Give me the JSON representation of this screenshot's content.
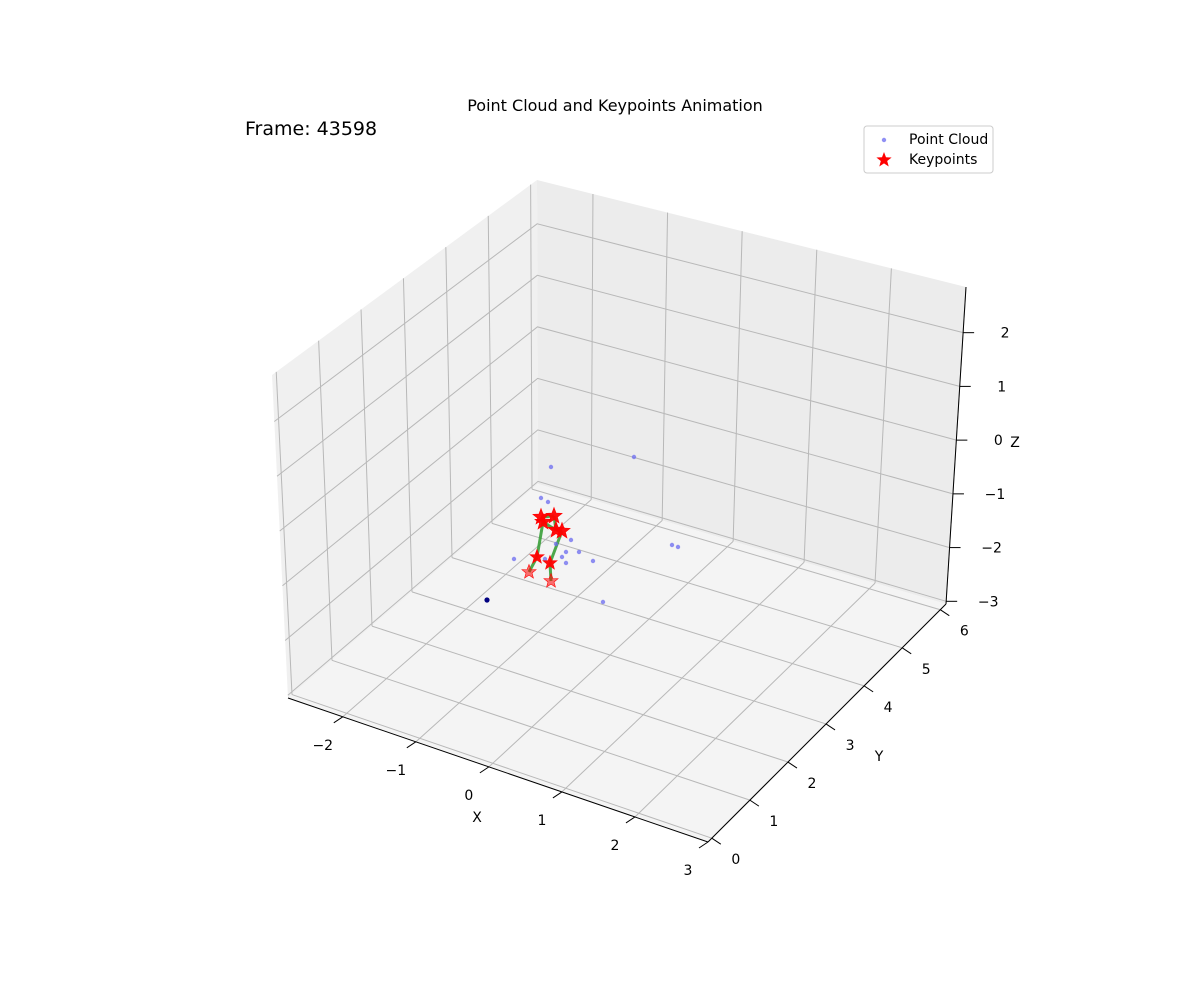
{
  "chart_data": {
    "type": "scatter",
    "title": "Point Cloud and Keypoints Animation",
    "frame_label": "Frame: 43598",
    "xlabel": "X",
    "ylabel": "Y",
    "zlabel": "Z",
    "x_ticks": [
      "−2",
      "−1",
      "0",
      "1",
      "2",
      "3"
    ],
    "y_ticks": [
      "0",
      "1",
      "2",
      "3",
      "4",
      "5",
      "6"
    ],
    "z_ticks": [
      "−3",
      "−2",
      "−1",
      "0",
      "1",
      "2"
    ],
    "grid": true,
    "legend_position": "top-right",
    "legend": [
      "Point Cloud",
      "Keypoints"
    ],
    "colors": {
      "point_cloud": "#6b6bf0",
      "keypoints": "#ff0000",
      "skeleton": "#2e9a2e",
      "pane_left": "#f0f0f0",
      "pane_right": "#ececec",
      "pane_floor": "#f4f4f4",
      "grid": "#b8b8b8"
    },
    "series": [
      {
        "name": "Point Cloud",
        "marker": "dot",
        "points_screen_estimate": [
          [
            551,
            467
          ],
          [
            634,
            457
          ],
          [
            541,
            498
          ],
          [
            548,
            502
          ],
          [
            571,
            540
          ],
          [
            556,
            544
          ],
          [
            566,
            552
          ],
          [
            579,
            552
          ],
          [
            562,
            557
          ],
          [
            545,
            559
          ],
          [
            514,
            559
          ],
          [
            566,
            563
          ],
          [
            593,
            561
          ],
          [
            672,
            545
          ],
          [
            678,
            547
          ],
          [
            603,
            602
          ],
          [
            487,
            600
          ]
        ]
      },
      {
        "name": "Keypoints",
        "marker": "star",
        "points_screen_estimate": [
          [
            541,
            517
          ],
          [
            554,
            516
          ],
          [
            543,
            522
          ],
          [
            556,
            530
          ],
          [
            562,
            531
          ],
          [
            537,
            557
          ],
          [
            550,
            563
          ],
          [
            529,
            572
          ],
          [
            551,
            581
          ]
        ],
        "edges": [
          [
            0,
            2
          ],
          [
            2,
            5
          ],
          [
            5,
            7
          ],
          [
            1,
            3
          ],
          [
            3,
            4
          ],
          [
            4,
            6
          ],
          [
            6,
            8
          ],
          [
            0,
            1
          ],
          [
            2,
            3
          ]
        ]
      }
    ]
  }
}
